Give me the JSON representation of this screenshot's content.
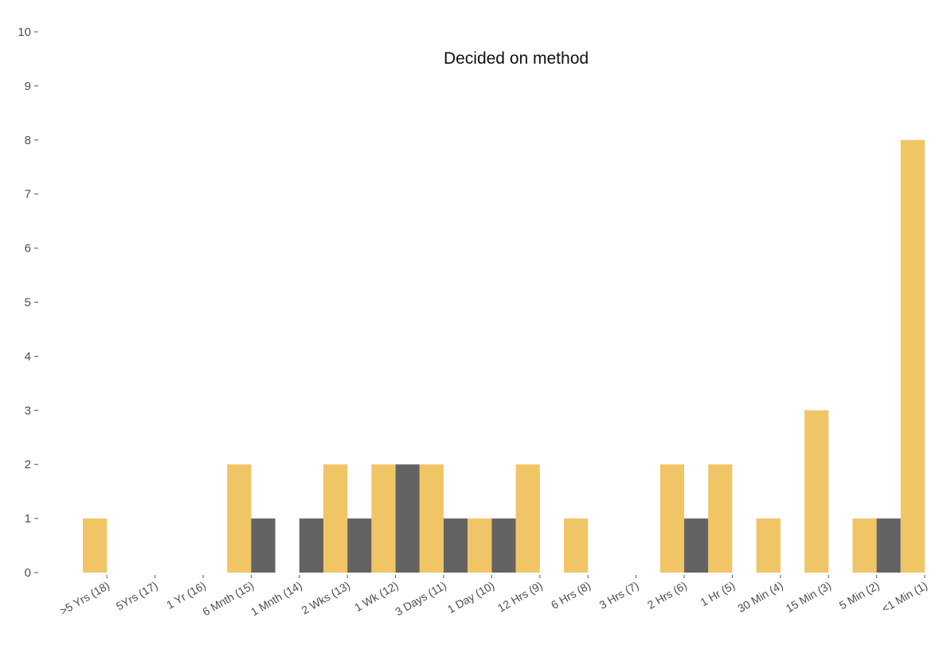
{
  "chart_data": {
    "type": "bar",
    "title": "Decided on method",
    "xlabel": "",
    "ylabel": "",
    "ylim": [
      0,
      10
    ],
    "yticks": [
      0,
      1,
      2,
      3,
      4,
      5,
      6,
      7,
      8,
      9,
      10
    ],
    "grid": false,
    "legend": "none",
    "categories": [
      ">5 Yrs (18)",
      "5Yrs (17)",
      "1 Yr (16)",
      "6 Mnth (15)",
      "1 Mnth (14)",
      "2 Wks (13)",
      "1 Wk (12)",
      "3 Days (11)",
      "1 Day (10)",
      "12 Hrs (9)",
      "6 Hrs (8)",
      "3 Hrs (7)",
      "2 Hrs (6)",
      "1 Hr (5)",
      "30 Min (4)",
      "15 Min (3)",
      "5 Min (2)",
      "<1 Min (1)"
    ],
    "series": [
      {
        "color": "#f0c566",
        "values": [
          1,
          0,
          0,
          2,
          0,
          2,
          2,
          2,
          1,
          2,
          1,
          0,
          2,
          2,
          1,
          3,
          1,
          8
        ]
      },
      {
        "color": "#636363",
        "values": [
          0,
          0,
          0,
          1,
          1,
          1,
          2,
          1,
          1,
          0,
          0,
          0,
          1,
          0,
          0,
          0,
          1,
          0
        ]
      }
    ]
  }
}
